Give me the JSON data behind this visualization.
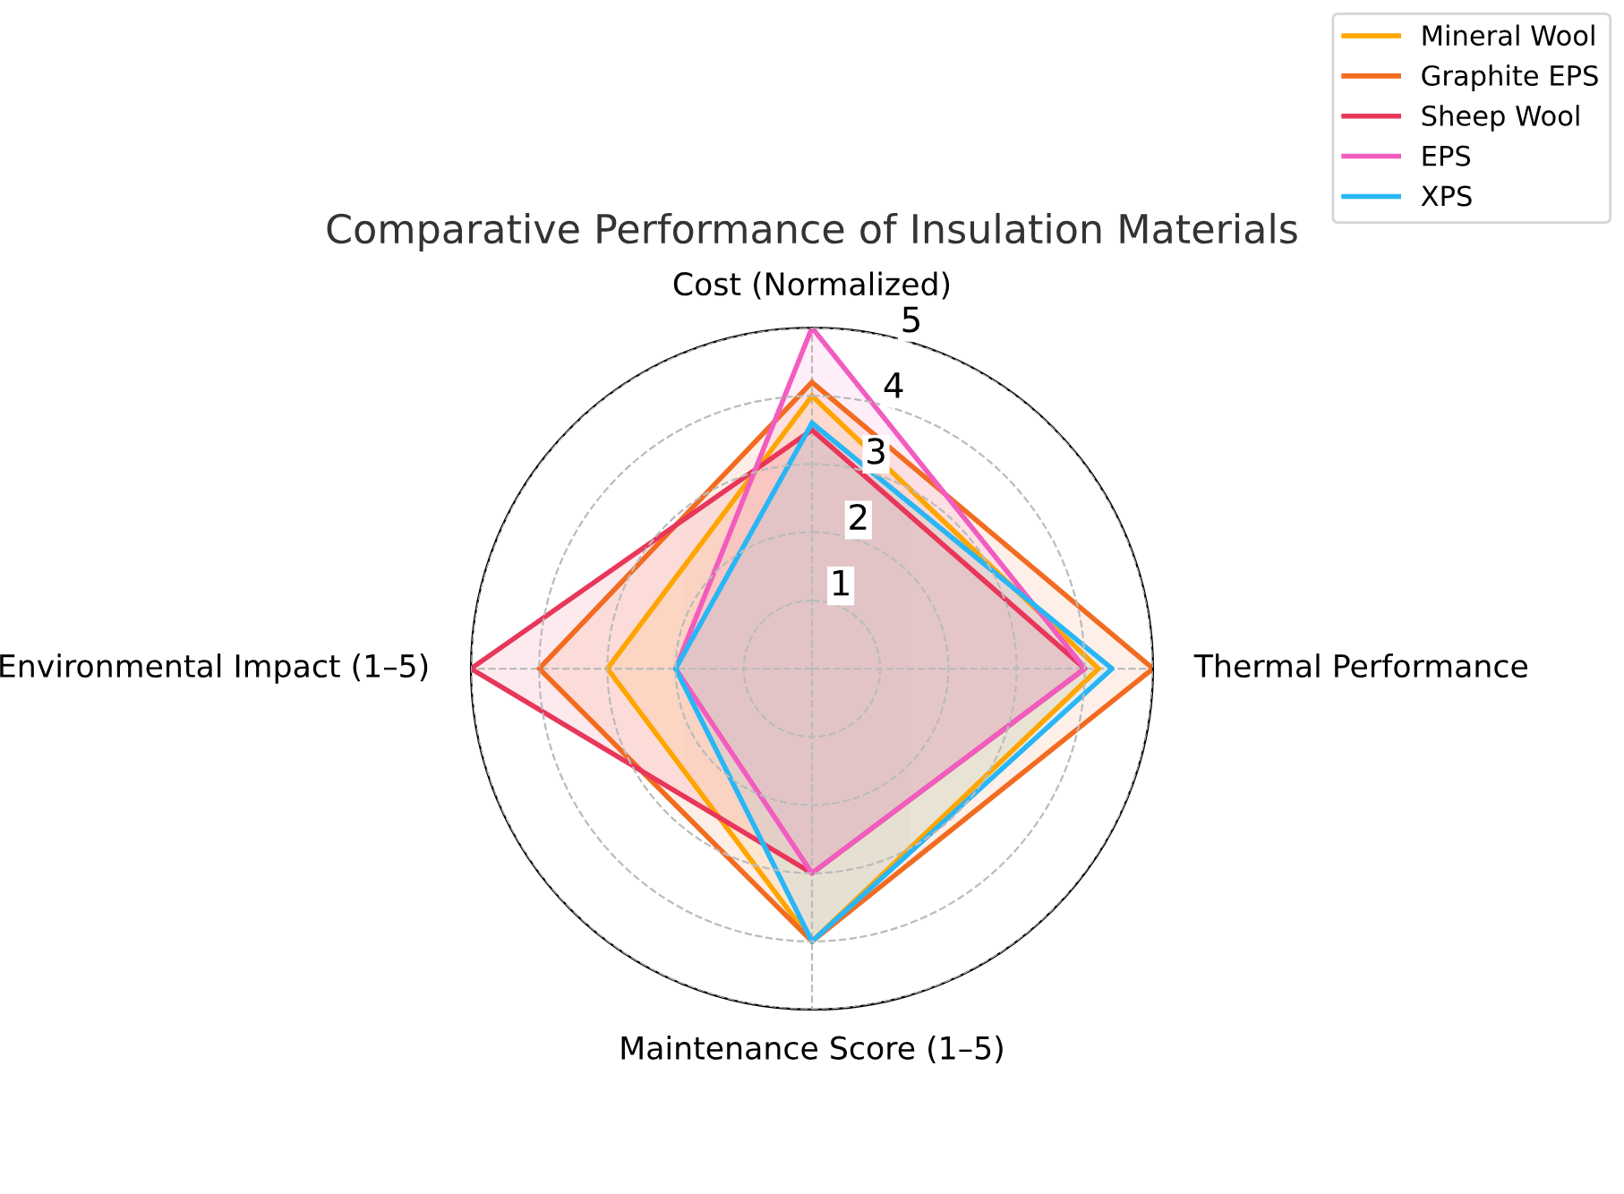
{
  "chart_data": {
    "type": "radar",
    "title": "Comparative Performance of Insulation Materials",
    "categories": [
      "Cost (Normalized)",
      "Thermal Performance",
      "Maintenance Score (1–5)",
      "Environmental Impact (1–5)"
    ],
    "ylim": [
      0,
      5
    ],
    "yticks": [
      1,
      2,
      3,
      4,
      5
    ],
    "grid": true,
    "legend": "top right",
    "line_style": "solid",
    "marker": "none",
    "series": [
      {
        "name": "Mineral Wool",
        "color": "#ffa500",
        "values": [
          4.0,
          4.2,
          4.0,
          3.0
        ]
      },
      {
        "name": "Graphite EPS",
        "color": "#f26b21",
        "values": [
          4.2,
          5.0,
          4.0,
          4.0
        ]
      },
      {
        "name": "Sheep Wool",
        "color": "#e8375a",
        "values": [
          3.5,
          4.0,
          3.0,
          5.0
        ]
      },
      {
        "name": "EPS",
        "color": "#f25cbf",
        "values": [
          5.0,
          4.0,
          3.0,
          2.0
        ]
      },
      {
        "name": "XPS",
        "color": "#29b6f6",
        "values": [
          3.6,
          4.4,
          4.0,
          2.0
        ]
      }
    ]
  }
}
